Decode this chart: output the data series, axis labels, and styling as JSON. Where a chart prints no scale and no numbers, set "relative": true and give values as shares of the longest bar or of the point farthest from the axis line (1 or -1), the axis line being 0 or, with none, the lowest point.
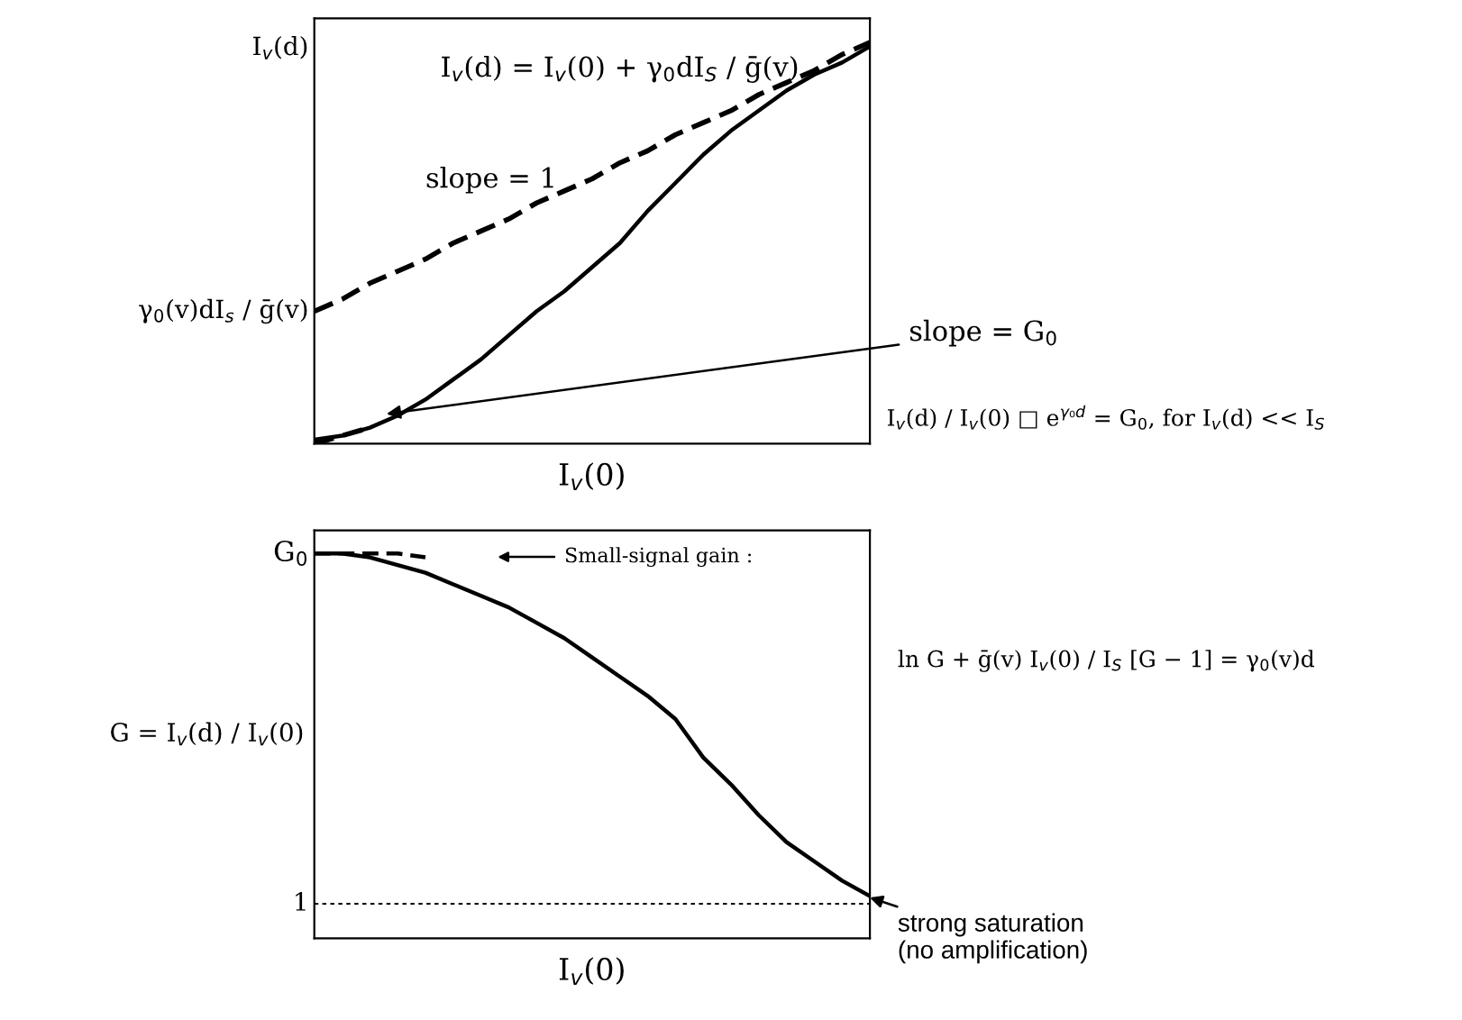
{
  "chart_data": [
    {
      "type": "line",
      "relative": true,
      "xlabel": "I$_{v}$(0)",
      "ylabel": "I$_{v}$(d)",
      "categories": [
        null,
        null,
        null,
        null,
        null,
        null,
        null,
        null,
        null,
        null,
        null,
        null,
        null,
        null,
        null,
        null,
        null,
        null,
        null,
        null,
        null
      ],
      "series": [
        {
          "color": "#000000",
          "line_style": "solid",
          "values": [
            0.01,
            0.02,
            0.04,
            0.07,
            0.11,
            0.16,
            0.21,
            0.27,
            0.33,
            0.38,
            0.44,
            0.5,
            0.58,
            0.65,
            0.72,
            0.78,
            0.83,
            0.88,
            0.92,
            0.95,
            0.99
          ]
        },
        {
          "color": "#000000",
          "line_style": "dashed",
          "values": [
            0.33,
            0.36,
            0.4,
            0.43,
            0.46,
            0.5,
            0.53,
            0.56,
            0.6,
            0.63,
            0.66,
            0.7,
            0.73,
            0.77,
            0.8,
            0.83,
            0.87,
            0.9,
            0.93,
            0.97,
            1.0
          ]
        },
        {
          "color": "#000000",
          "line_style": "dashed",
          "values": [
            0.0,
            0.02,
            0.04,
            null,
            null,
            null,
            null,
            null,
            null,
            null,
            null,
            null,
            null,
            null,
            null,
            null,
            null,
            null,
            null,
            null,
            null
          ]
        }
      ],
      "annotations": [
        "I$_{v}$(d) = I$_{v}$(0) + γ$_{0}$dI$_{S}$ / ḡ(v)",
        "slope = 1",
        "γ$_{0}$(v)dI$_{s}$ / ḡ(v)",
        "slope = G$_{0}$",
        "I$_{v}$(d) / I$_{v}$(0) □ e$^{γ₀d}$ = G$_{0}$, for I$_{v}$(d) << I$_{S}$"
      ]
    },
    {
      "type": "line",
      "relative": true,
      "xlabel": "I$_{v}$(0)",
      "ylabel": "G = I$_{v}$(d) / I$_{v}$(0)",
      "categories": [
        null,
        null,
        null,
        null,
        null,
        null,
        null,
        null,
        null,
        null,
        null,
        null,
        null,
        null,
        null,
        null,
        null,
        null,
        null,
        null,
        null
      ],
      "series": [
        {
          "color": "#000000",
          "line_style": "solid",
          "values": [
            1.0,
            1.0,
            0.99,
            0.97,
            0.95,
            0.92,
            0.89,
            0.86,
            0.82,
            0.78,
            0.73,
            0.68,
            0.63,
            0.57,
            0.47,
            0.4,
            0.32,
            0.25,
            0.2,
            0.15,
            0.11
          ]
        },
        {
          "color": "#000000",
          "line_style": "dashed",
          "values": [
            1.0,
            1.0,
            1.0,
            1.0,
            0.99,
            null,
            null,
            null,
            null,
            null,
            null,
            null,
            null,
            null,
            null,
            null,
            null,
            null,
            null,
            null,
            null
          ]
        }
      ],
      "ref_lines": [
        {
          "axis": "y",
          "value": 0.09,
          "line_style": "dotted",
          "color": "#000000"
        }
      ],
      "annotations": [
        "G$_{0}$",
        "1",
        "Small-signal gain :",
        "ln G + ḡ(v) I$_{v}$(0) / I$_{S}$ [G − 1] = γ$_{0}$(v)d",
        "strong saturation\n(no amplification)"
      ]
    }
  ]
}
